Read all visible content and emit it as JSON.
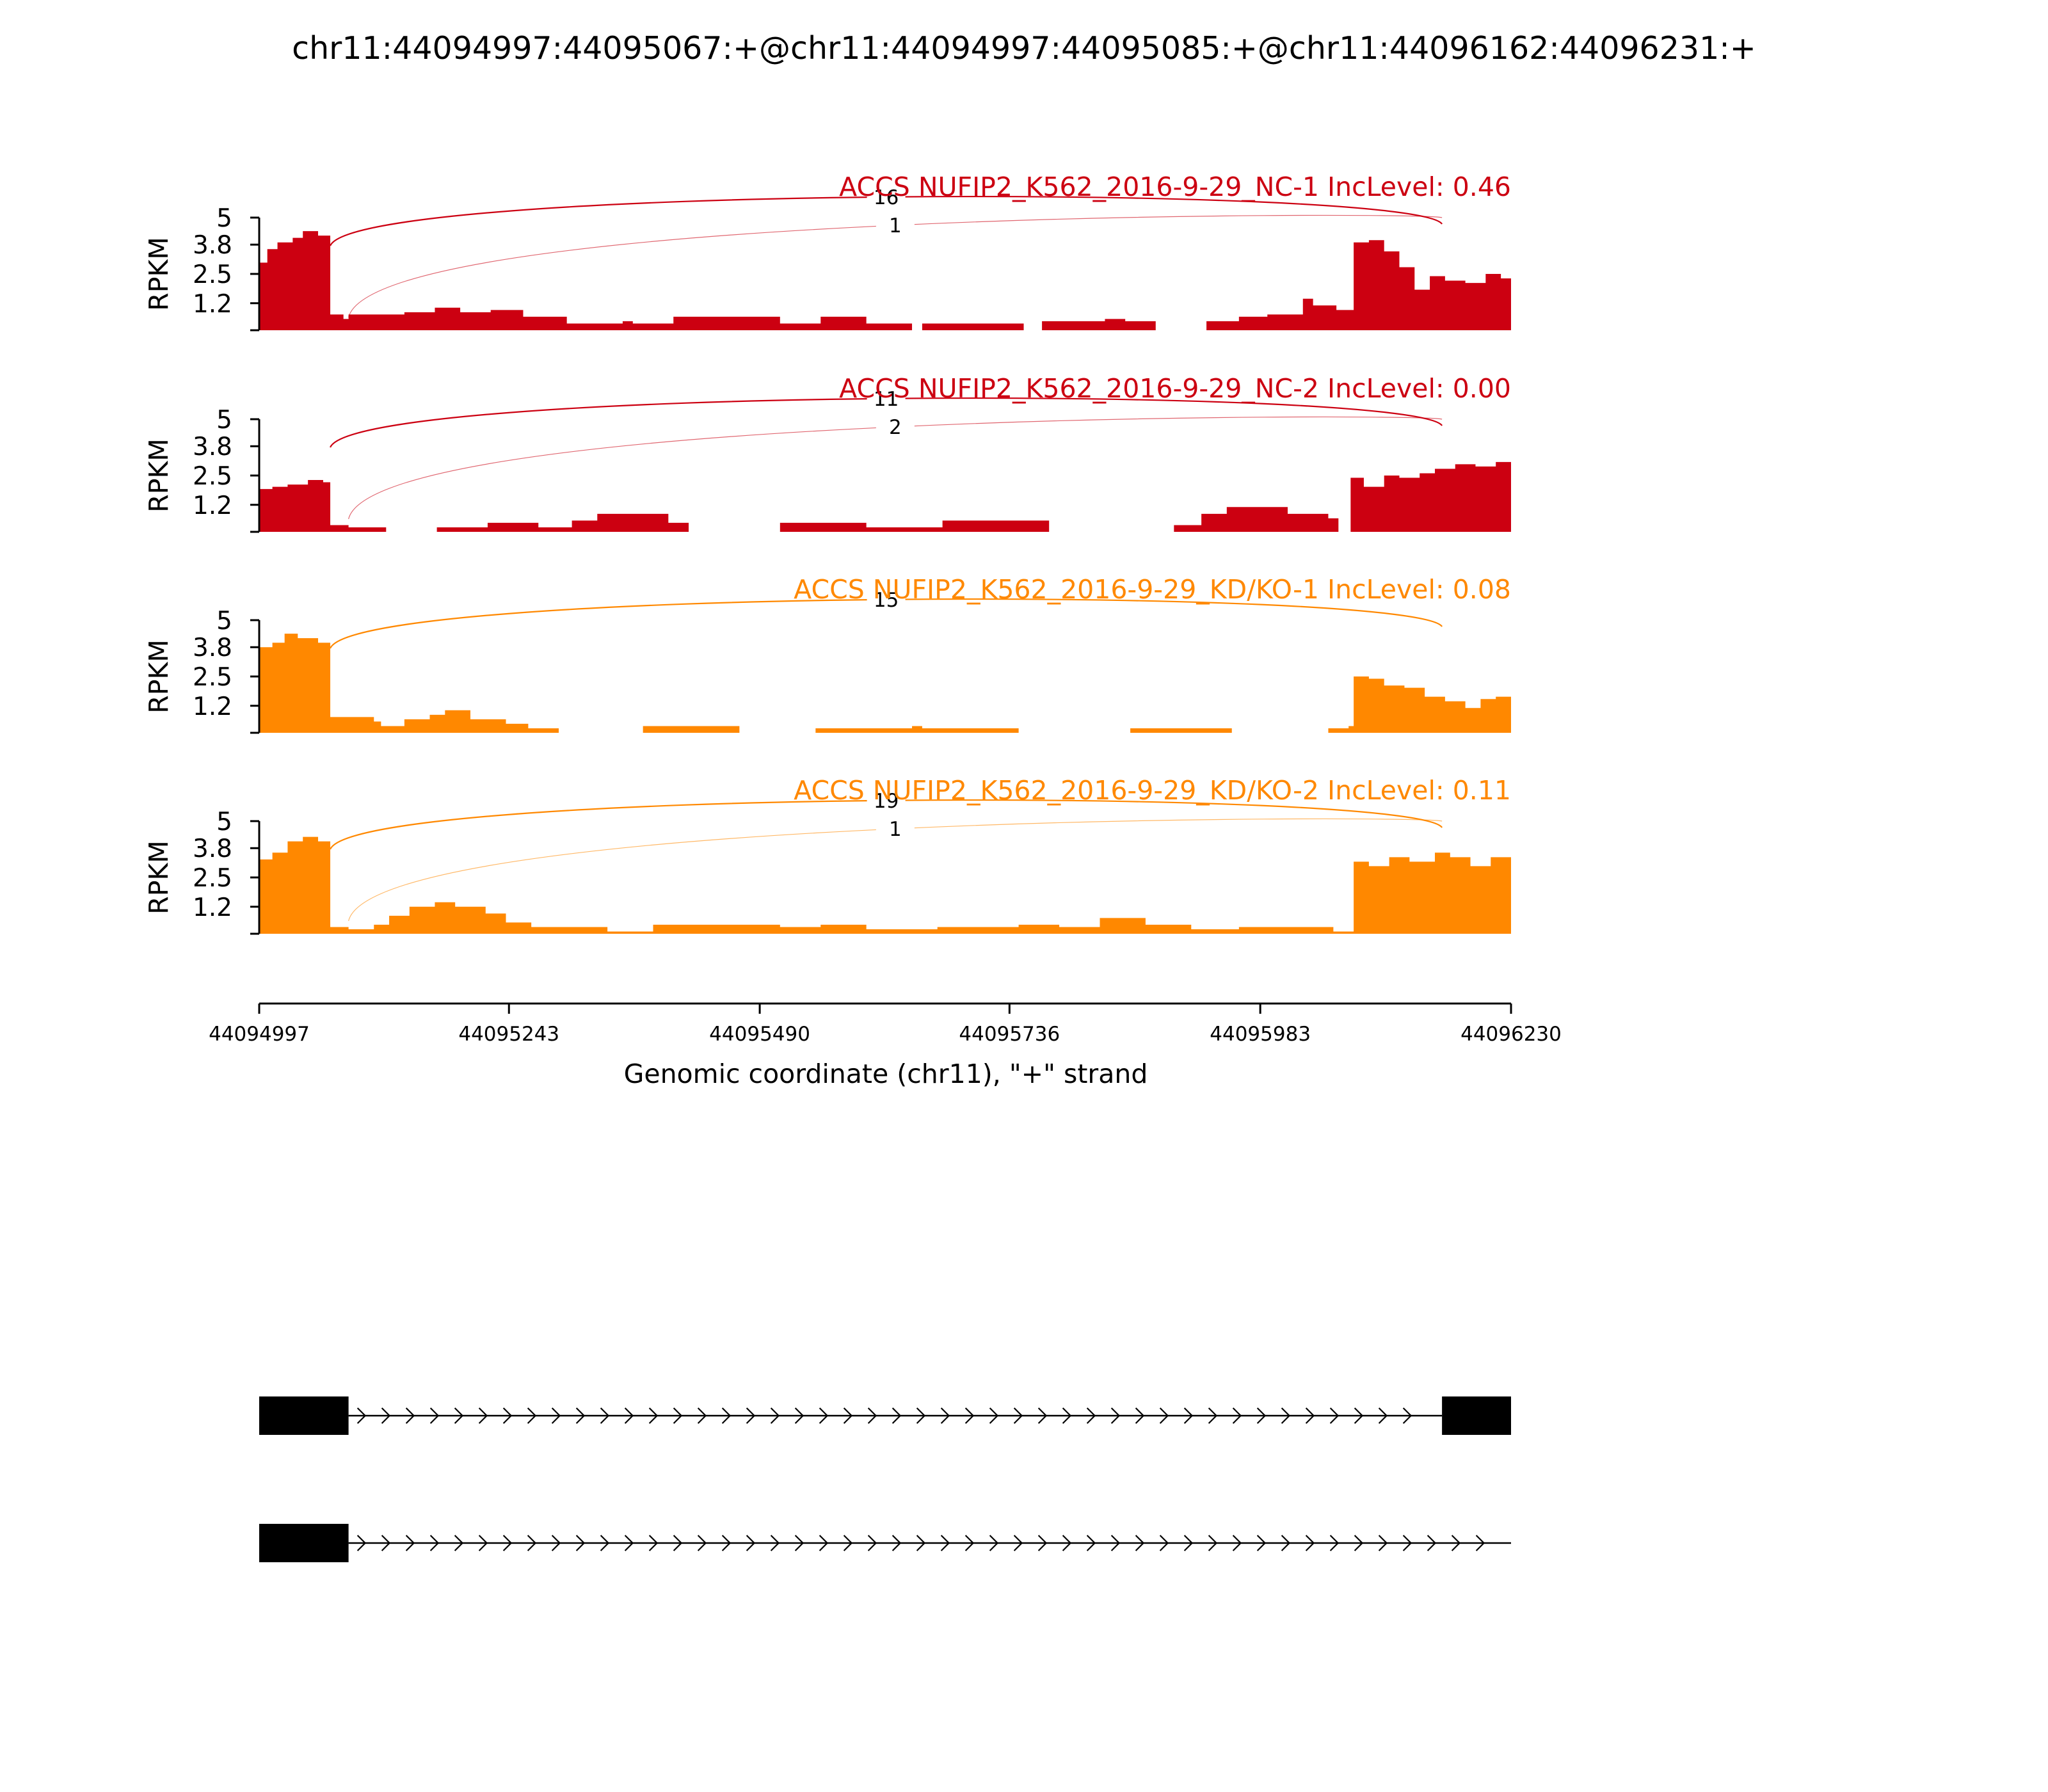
{
  "figure_title": "chr11:44094997:44095067:+@chr11:44094997:44095085:+@chr11:44096162:44096231:+",
  "chart_data": {
    "type": "area",
    "subtype": "sashimi",
    "title": "chr11:44094997:44095067:+@chr11:44094997:44095085:+@chr11:44096162:44096231:+",
    "xlabel": "Genomic coordinate (chr11), \"+\" strand",
    "ylabel": "RPKM",
    "xlim": [
      44094997,
      44096230
    ],
    "x_ticks": [
      "44094997",
      "44095243",
      "44095490",
      "44095736",
      "44095983",
      "44096230"
    ],
    "ylim": [
      0,
      5
    ],
    "y_ticks": [
      "1.2",
      "2.5",
      "3.8",
      "5"
    ],
    "grid": false,
    "tracks": [
      {
        "label": "ACCS NUFIP2_K562_2016-9-29_NC-1 IncLevel: 0.46",
        "color": "#cc0011",
        "coverage": [
          [
            44094997,
            3.0
          ],
          [
            44095005,
            3.6
          ],
          [
            44095015,
            3.9
          ],
          [
            44095030,
            4.1
          ],
          [
            44095040,
            4.4
          ],
          [
            44095055,
            4.2
          ],
          [
            44095067,
            0.7
          ],
          [
            44095080,
            0.5
          ],
          [
            44095085,
            0.7
          ],
          [
            44095140,
            0.8
          ],
          [
            44095170,
            1.0
          ],
          [
            44095195,
            0.8
          ],
          [
            44095225,
            0.9
          ],
          [
            44095257,
            0.6
          ],
          [
            44095300,
            0.3
          ],
          [
            44095355,
            0.4
          ],
          [
            44095365,
            0.3
          ],
          [
            44095405,
            0.6
          ],
          [
            44095510,
            0.3
          ],
          [
            44095550,
            0.6
          ],
          [
            44095595,
            0.3
          ],
          [
            44095640,
            0.0
          ],
          [
            44095650,
            0.3
          ],
          [
            44095750,
            0.0
          ],
          [
            44095768,
            0.4
          ],
          [
            44095830,
            0.5
          ],
          [
            44095850,
            0.4
          ],
          [
            44095880,
            0.0
          ],
          [
            44095930,
            0.4
          ],
          [
            44095962,
            0.6
          ],
          [
            44095990,
            0.7
          ],
          [
            44096025,
            1.4
          ],
          [
            44096035,
            1.1
          ],
          [
            44096058,
            0.9
          ],
          [
            44096075,
            3.9
          ],
          [
            44096090,
            4.0
          ],
          [
            44096105,
            3.5
          ],
          [
            44096120,
            2.8
          ],
          [
            44096135,
            1.8
          ],
          [
            44096150,
            2.4
          ],
          [
            44096165,
            2.2
          ],
          [
            44096185,
            2.1
          ],
          [
            44096205,
            2.5
          ],
          [
            44096220,
            2.3
          ],
          [
            44096230,
            2.5
          ]
        ],
        "junctions": [
          {
            "from": 44095067,
            "to": 44096162,
            "count": "16"
          },
          {
            "from": 44095085,
            "to": 44096162,
            "count": "1"
          }
        ]
      },
      {
        "label": "ACCS NUFIP2_K562_2016-9-29_NC-2 IncLevel: 0.00",
        "color": "#cc0011",
        "coverage": [
          [
            44094997,
            1.9
          ],
          [
            44095010,
            2.0
          ],
          [
            44095025,
            2.1
          ],
          [
            44095045,
            2.3
          ],
          [
            44095060,
            2.2
          ],
          [
            44095067,
            0.3
          ],
          [
            44095085,
            0.2
          ],
          [
            44095122,
            0.0
          ],
          [
            44095172,
            0.2
          ],
          [
            44095222,
            0.4
          ],
          [
            44095272,
            0.2
          ],
          [
            44095305,
            0.5
          ],
          [
            44095330,
            0.8
          ],
          [
            44095400,
            0.4
          ],
          [
            44095420,
            0.0
          ],
          [
            44095510,
            0.4
          ],
          [
            44095595,
            0.2
          ],
          [
            44095670,
            0.5
          ],
          [
            44095775,
            0.0
          ],
          [
            44095898,
            0.3
          ],
          [
            44095925,
            0.8
          ],
          [
            44095950,
            1.1
          ],
          [
            44096010,
            0.8
          ],
          [
            44096050,
            0.6
          ],
          [
            44096060,
            0.0
          ],
          [
            44096072,
            2.4
          ],
          [
            44096085,
            2.0
          ],
          [
            44096105,
            2.5
          ],
          [
            44096120,
            2.4
          ],
          [
            44096140,
            2.6
          ],
          [
            44096155,
            2.8
          ],
          [
            44096175,
            3.0
          ],
          [
            44096195,
            2.9
          ],
          [
            44096215,
            3.1
          ],
          [
            44096230,
            3.3
          ]
        ],
        "junctions": [
          {
            "from": 44095067,
            "to": 44096162,
            "count": "11"
          },
          {
            "from": 44095085,
            "to": 44096162,
            "count": "2"
          }
        ]
      },
      {
        "label": "ACCS NUFIP2_K562_2016-9-29_KD/KO-1 IncLevel: 0.08",
        "color": "#ff8800",
        "coverage": [
          [
            44094997,
            3.8
          ],
          [
            44095010,
            4.0
          ],
          [
            44095022,
            4.4
          ],
          [
            44095035,
            4.2
          ],
          [
            44095055,
            4.0
          ],
          [
            44095067,
            0.7
          ],
          [
            44095110,
            0.5
          ],
          [
            44095117,
            0.3
          ],
          [
            44095140,
            0.6
          ],
          [
            44095165,
            0.8
          ],
          [
            44095180,
            1.0
          ],
          [
            44095205,
            0.6
          ],
          [
            44095240,
            0.4
          ],
          [
            44095262,
            0.2
          ],
          [
            44095292,
            0.0
          ],
          [
            44095375,
            0.3
          ],
          [
            44095470,
            0.0
          ],
          [
            44095545,
            0.2
          ],
          [
            44095640,
            0.3
          ],
          [
            44095650,
            0.2
          ],
          [
            44095745,
            0.0
          ],
          [
            44095855,
            0.2
          ],
          [
            44095955,
            0.0
          ],
          [
            44096050,
            0.2
          ],
          [
            44096070,
            0.3
          ],
          [
            44096075,
            2.5
          ],
          [
            44096090,
            2.4
          ],
          [
            44096105,
            2.1
          ],
          [
            44096125,
            2.0
          ],
          [
            44096145,
            1.6
          ],
          [
            44096165,
            1.4
          ],
          [
            44096185,
            1.1
          ],
          [
            44096200,
            1.5
          ],
          [
            44096215,
            1.6
          ],
          [
            44096230,
            1.7
          ]
        ],
        "junctions": [
          {
            "from": 44095067,
            "to": 44096162,
            "count": "15"
          }
        ]
      },
      {
        "label": "ACCS NUFIP2_K562_2016-9-29_KD/KO-2 IncLevel: 0.11",
        "color": "#ff8800",
        "coverage": [
          [
            44094997,
            3.3
          ],
          [
            44095010,
            3.6
          ],
          [
            44095025,
            4.1
          ],
          [
            44095040,
            4.3
          ],
          [
            44095055,
            4.1
          ],
          [
            44095067,
            0.3
          ],
          [
            44095085,
            0.2
          ],
          [
            44095110,
            0.4
          ],
          [
            44095125,
            0.8
          ],
          [
            44095145,
            1.2
          ],
          [
            44095170,
            1.4
          ],
          [
            44095190,
            1.2
          ],
          [
            44095220,
            0.9
          ],
          [
            44095240,
            0.5
          ],
          [
            44095265,
            0.3
          ],
          [
            44095340,
            0.1
          ],
          [
            44095385,
            0.4
          ],
          [
            44095510,
            0.3
          ],
          [
            44095550,
            0.4
          ],
          [
            44095595,
            0.2
          ],
          [
            44095665,
            0.3
          ],
          [
            44095745,
            0.4
          ],
          [
            44095785,
            0.3
          ],
          [
            44095825,
            0.7
          ],
          [
            44095870,
            0.4
          ],
          [
            44095915,
            0.2
          ],
          [
            44095962,
            0.3
          ],
          [
            44096055,
            0.1
          ],
          [
            44096075,
            3.2
          ],
          [
            44096090,
            3.0
          ],
          [
            44096110,
            3.4
          ],
          [
            44096130,
            3.2
          ],
          [
            44096155,
            3.6
          ],
          [
            44096170,
            3.4
          ],
          [
            44096190,
            3.0
          ],
          [
            44096210,
            3.4
          ],
          [
            44096230,
            3.7
          ]
        ],
        "junctions": [
          {
            "from": 44095067,
            "to": 44096162,
            "count": "19"
          },
          {
            "from": 44095085,
            "to": 44096162,
            "count": "1"
          }
        ]
      }
    ],
    "isoforms": [
      {
        "exons": [
          [
            44094997,
            44095085
          ],
          [
            44096162,
            44096230
          ]
        ],
        "intron": [
          44095085,
          44096162
        ]
      },
      {
        "exons": [
          [
            44094997,
            44095085
          ]
        ],
        "intron": [
          44095085,
          44096230
        ]
      }
    ]
  }
}
